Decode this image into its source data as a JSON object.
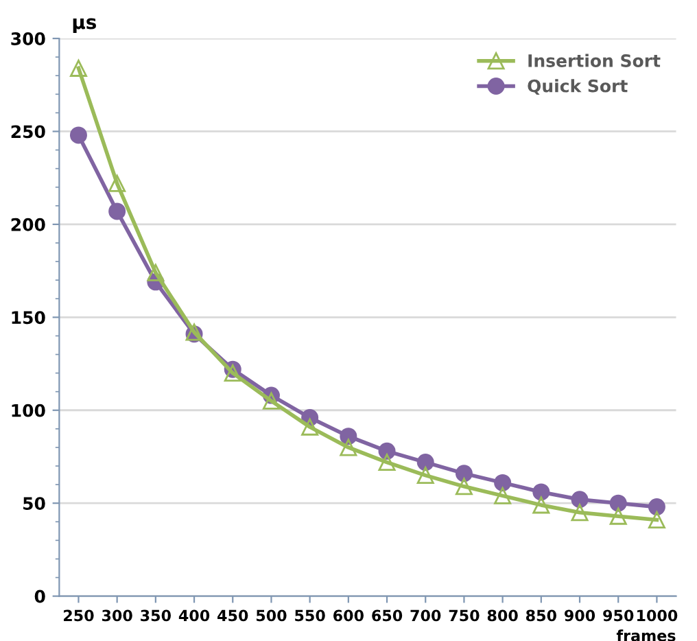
{
  "chart_data": {
    "type": "line",
    "xlabel": "frames",
    "ylabel": "µs",
    "categories": [
      "250",
      "300",
      "350",
      "400",
      "450",
      "500",
      "550",
      "600",
      "650",
      "700",
      "750",
      "800",
      "850",
      "900",
      "950",
      "1000"
    ],
    "series": [
      {
        "name": "Insertion Sort",
        "color": "#9bbb59",
        "marker": "triangle",
        "values": [
          284,
          222,
          174,
          142,
          120,
          105,
          91,
          80,
          72,
          65,
          59,
          54,
          49,
          45,
          43,
          41
        ]
      },
      {
        "name": "Quick Sort",
        "color": "#8064a2",
        "marker": "circle",
        "values": [
          248,
          207,
          169,
          141,
          122,
          108,
          96,
          86,
          78,
          72,
          66,
          61,
          56,
          52,
          50,
          48
        ]
      }
    ],
    "ylim": [
      0,
      300
    ],
    "yticks": [
      0,
      50,
      100,
      150,
      200,
      250,
      300
    ],
    "grid": "y",
    "legend": "top right"
  }
}
